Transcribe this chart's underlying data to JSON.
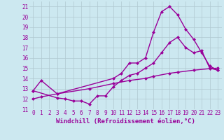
{
  "xlabel": "Windchill (Refroidissement éolien,°C)",
  "background_color": "#cce8f0",
  "line_color": "#990099",
  "grid_color": "#b0c8d0",
  "xlim": [
    -0.5,
    23.5
  ],
  "ylim": [
    11,
    21.5
  ],
  "xticks": [
    0,
    1,
    2,
    3,
    4,
    5,
    6,
    7,
    8,
    9,
    10,
    11,
    12,
    13,
    14,
    15,
    16,
    17,
    18,
    19,
    20,
    21,
    22,
    23
  ],
  "yticks": [
    11,
    12,
    13,
    14,
    15,
    16,
    17,
    18,
    19,
    20,
    21
  ],
  "line1_x": [
    0,
    1,
    3,
    10,
    11,
    12,
    13,
    14,
    15,
    16,
    17,
    18,
    19,
    20,
    21,
    22,
    23
  ],
  "line1_y": [
    12.8,
    13.8,
    12.5,
    14.0,
    14.5,
    15.5,
    15.5,
    16.0,
    18.5,
    20.5,
    21.0,
    20.2,
    18.8,
    17.8,
    16.5,
    15.2,
    14.8
  ],
  "line2_x": [
    0,
    3,
    4,
    5,
    6,
    7,
    8,
    9,
    10,
    11,
    12,
    13,
    14,
    15,
    16,
    17,
    18,
    19,
    20,
    21,
    22,
    23
  ],
  "line2_y": [
    12.8,
    12.1,
    12.0,
    11.8,
    11.8,
    11.5,
    12.3,
    12.3,
    13.2,
    13.8,
    14.3,
    14.5,
    15.0,
    15.5,
    16.5,
    17.5,
    18.0,
    17.0,
    16.5,
    16.7,
    15.0,
    14.8
  ],
  "line3_x": [
    0,
    1,
    3,
    7,
    10,
    12,
    14,
    15,
    17,
    18,
    20,
    22,
    23
  ],
  "line3_y": [
    12.0,
    12.2,
    12.5,
    13.0,
    13.5,
    13.8,
    14.0,
    14.2,
    14.5,
    14.6,
    14.8,
    14.95,
    15.0
  ],
  "marker": "D",
  "markersize": 2.5,
  "linewidth": 1.0,
  "xlabel_fontsize": 6.5,
  "tick_fontsize": 5.5
}
